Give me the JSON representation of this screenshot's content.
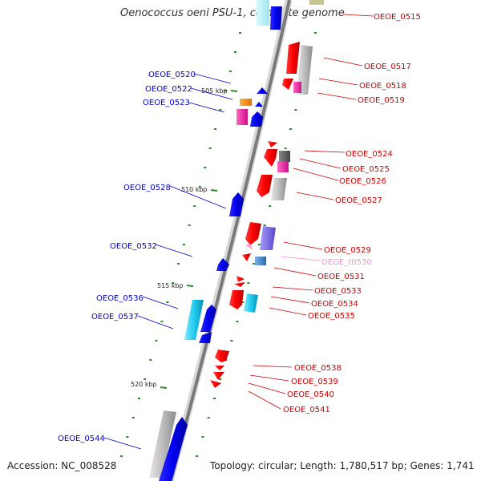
{
  "title": "Oenococcus oeni PSU-1, complete genome",
  "footer": {
    "accession": "Accession: NC_008528",
    "topology": "Topology: circular; Length: 1,780,517 bp; Genes: 1,741"
  },
  "colors": {
    "forward_label": "#cc0000",
    "reverse_label": "#0000cc",
    "trna_label": "#ee99cc",
    "backbone": "#888888",
    "tick": "#2a8a2a"
  },
  "scale": [
    {
      "label": "505 kbp"
    },
    {
      "label": "510 kbp"
    },
    {
      "label": "515 kbp"
    },
    {
      "label": "520 kbp"
    }
  ],
  "genes_right": [
    {
      "id": "OEOE_0515"
    },
    {
      "id": "OEOE_0517"
    },
    {
      "id": "OEOE_0518"
    },
    {
      "id": "OEOE_0519"
    },
    {
      "id": "OEOE_0524"
    },
    {
      "id": "OEOE_0525"
    },
    {
      "id": "OEOE_0526"
    },
    {
      "id": "OEOE_0527"
    },
    {
      "id": "OEOE_0529"
    },
    {
      "id": "OEOE_t0530"
    },
    {
      "id": "OEOE_0531"
    },
    {
      "id": "OEOE_0533"
    },
    {
      "id": "OEOE_0534"
    },
    {
      "id": "OEOE_0535"
    },
    {
      "id": "OEOE_0538"
    },
    {
      "id": "OEOE_0539"
    },
    {
      "id": "OEOE_0540"
    },
    {
      "id": "OEOE_0541"
    }
  ],
  "genes_left": [
    {
      "id": "OEOE_0520"
    },
    {
      "id": "OEOE_0522"
    },
    {
      "id": "OEOE_0523"
    },
    {
      "id": "OEOE_0528"
    },
    {
      "id": "OEOE_0532"
    },
    {
      "id": "OEOE_0536"
    },
    {
      "id": "OEOE_0537"
    },
    {
      "id": "OEOE_0544"
    }
  ]
}
